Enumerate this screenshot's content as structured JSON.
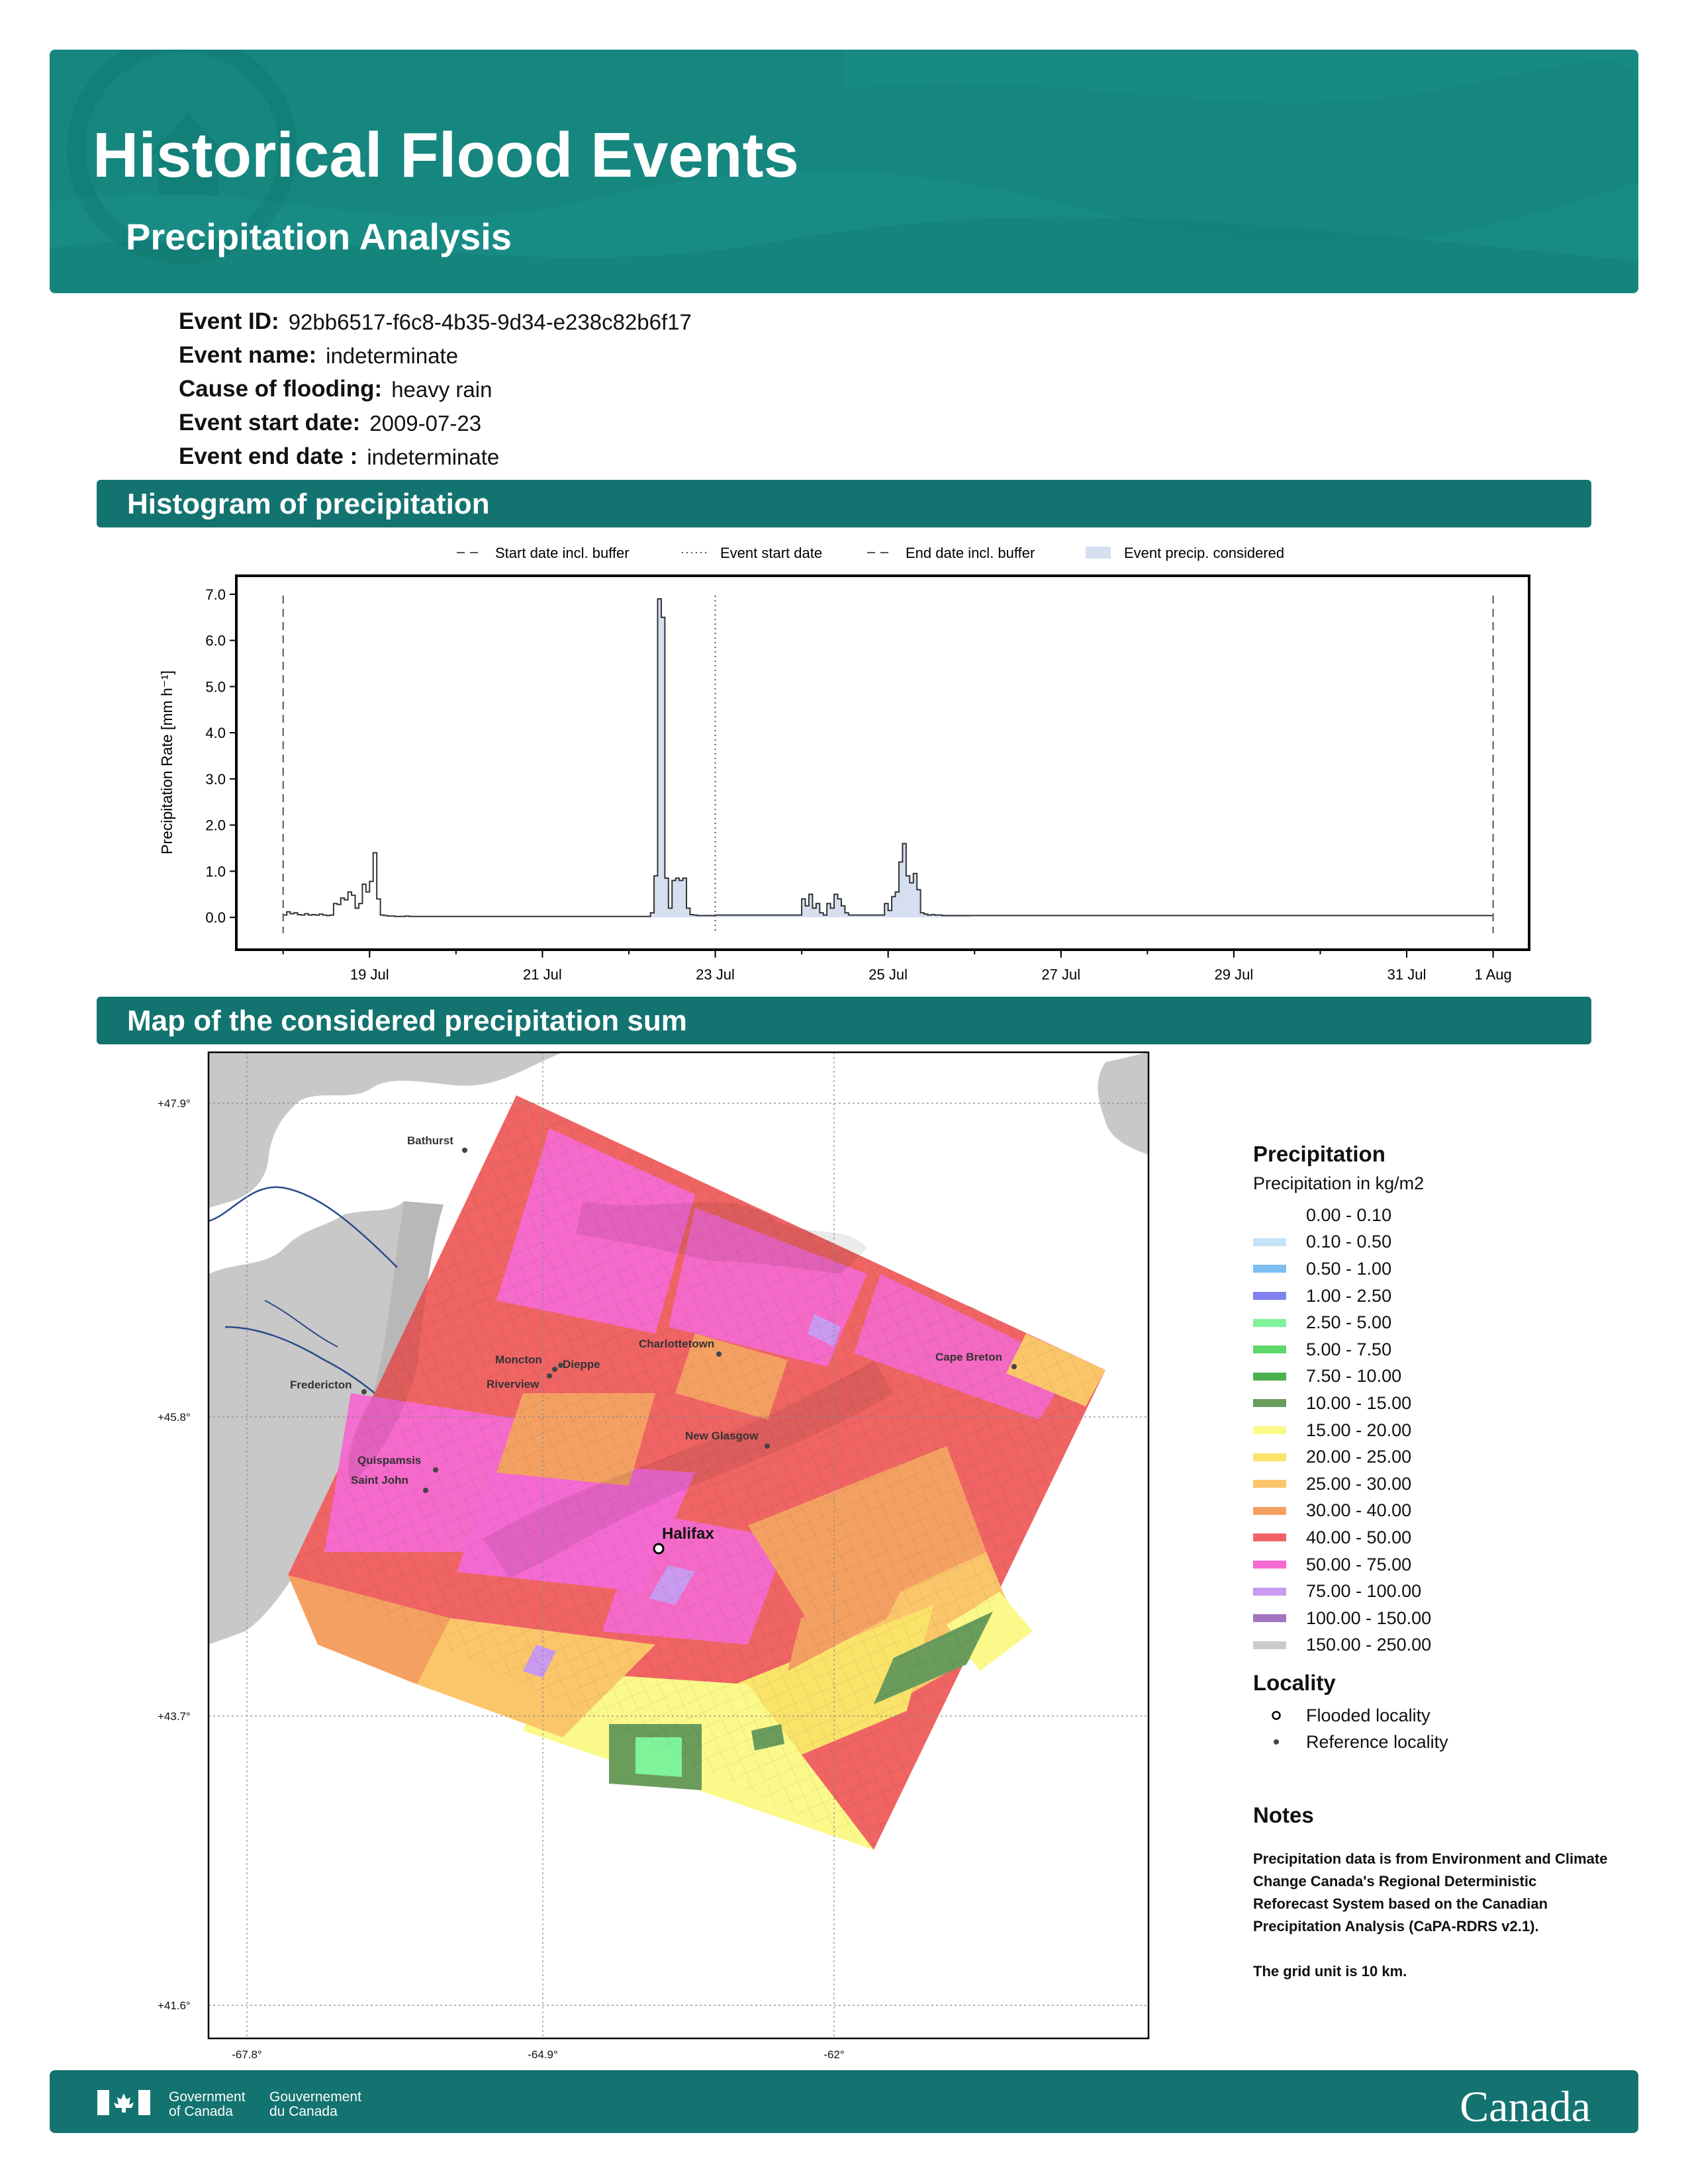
{
  "header": {
    "title": "Historical Flood Events",
    "subtitle": "Precipitation Analysis"
  },
  "event": [
    {
      "key": "Event ID:",
      "value": "92bb6517-f6c8-4b35-9d34-e238c82b6f17"
    },
    {
      "key": "Event name:",
      "value": "indeterminate"
    },
    {
      "key": "Cause of flooding:",
      "value": "heavy rain"
    },
    {
      "key": "Event start date:",
      "value": "2009-07-23"
    },
    {
      "key": "Event end date :",
      "value": "indeterminate"
    }
  ],
  "sections": {
    "histogram": "Histogram of precipitation",
    "map": "Map of the considered precipitation sum"
  },
  "chart_data": {
    "type": "area",
    "ylabel": "Precipitation Rate [mm h⁻¹]",
    "ylim": [
      -0.7,
      7.4
    ],
    "yticks": [
      "0.0",
      "1.0",
      "2.0",
      "3.0",
      "4.0",
      "5.0",
      "6.0",
      "7.0"
    ],
    "xlim": [
      "2009-07-17 11:00",
      "2009-08-01 10:00"
    ],
    "xtick_labels": [
      {
        "date": "2009-07-19",
        "label": "19 Jul"
      },
      {
        "date": "2009-07-21",
        "label": "21 Jul"
      },
      {
        "date": "2009-07-23",
        "label": "23 Jul"
      },
      {
        "date": "2009-07-25",
        "label": "25 Jul"
      },
      {
        "date": "2009-07-27",
        "label": "27 Jul"
      },
      {
        "date": "2009-07-29",
        "label": "29 Jul"
      },
      {
        "date": "2009-07-31",
        "label": "31 Jul"
      },
      {
        "date": "2009-08-01",
        "label": "1 Aug"
      }
    ],
    "legend": [
      {
        "name": "Start date incl. buffer",
        "style": "dashed"
      },
      {
        "name": "Event start date",
        "style": "dotted"
      },
      {
        "name": "End date incl. buffer",
        "style": "dashed"
      },
      {
        "name": "Event precip. considered",
        "style": "fill"
      }
    ],
    "legend_position": "top-center",
    "vlines": [
      {
        "name": "Start date incl. buffer",
        "date": "2009-07-18 00:00"
      },
      {
        "name": "Event start date",
        "date": "2009-07-23 00:00"
      },
      {
        "name": "End date incl. buffer",
        "date": "2009-08-01 00:00"
      }
    ],
    "series": [
      {
        "date": "2009-07-18 00:00",
        "values": [
          0.05,
          0.12,
          0.08,
          0.1,
          0.06,
          0.05,
          0.08,
          0.05,
          0.06,
          0.05,
          0.07,
          0.05,
          0.04,
          0.05,
          0.3,
          0.28,
          0.42,
          0.38,
          0.55,
          0.48,
          0.2,
          0.3,
          0.72,
          0.55,
          0.78,
          1.4,
          0.4,
          0.05,
          0.04,
          0.03,
          0.03,
          0.02,
          0.02,
          0.02,
          0.03,
          0.02,
          0.02,
          0.02,
          0.02,
          0.02,
          0.02,
          0.02,
          0.02,
          0.02,
          0.02,
          0.02,
          0.02,
          0.02
        ]
      },
      {
        "date": "2009-07-20 00:00",
        "values": [
          0.02,
          0.02,
          0.02,
          0.02,
          0.02,
          0.02,
          0.02,
          0.02,
          0.02,
          0.02,
          0.02,
          0.02,
          0.02,
          0.02,
          0.02,
          0.02,
          0.02,
          0.02,
          0.02,
          0.02,
          0.02,
          0.02,
          0.02,
          0.02,
          0.02,
          0.02,
          0.02,
          0.02,
          0.02,
          0.02,
          0.02,
          0.02,
          0.02,
          0.02,
          0.02,
          0.02,
          0.02,
          0.02,
          0.02,
          0.02,
          0.02,
          0.02,
          0.02,
          0.02,
          0.02,
          0.02,
          0.02,
          0.02
        ]
      },
      {
        "date": "2009-07-22 00:00",
        "values": [
          0.02,
          0.02,
          0.02,
          0.02,
          0.02,
          0.02,
          0.1,
          0.9,
          6.9,
          6.5,
          0.85,
          0.2,
          0.8,
          0.85,
          0.8,
          0.85,
          0.2,
          0.06,
          0.05,
          0.04,
          0.04,
          0.04,
          0.04,
          0.04,
          0.05,
          0.05,
          0.05,
          0.05,
          0.05,
          0.05,
          0.05,
          0.05,
          0.05,
          0.05,
          0.05,
          0.05,
          0.05,
          0.05,
          0.05,
          0.05,
          0.05,
          0.05,
          0.05,
          0.05,
          0.05,
          0.05,
          0.05,
          0.05
        ]
      },
      {
        "date": "2009-07-24 00:00",
        "values": [
          0.4,
          0.25,
          0.5,
          0.2,
          0.3,
          0.1,
          0.05,
          0.3,
          0.2,
          0.5,
          0.4,
          0.25,
          0.1,
          0.05,
          0.05,
          0.05,
          0.05,
          0.05,
          0.05,
          0.05,
          0.05,
          0.05,
          0.05,
          0.3,
          0.15,
          0.45,
          0.55,
          1.2,
          1.6,
          0.9,
          0.75,
          0.95,
          0.6,
          0.1,
          0.07,
          0.05,
          0.06,
          0.05,
          0.05,
          0.04,
          0.04,
          0.04,
          0.04,
          0.04,
          0.04,
          0.04,
          0.04,
          0.04
        ]
      },
      {
        "date": "2009-07-26 00:00",
        "values": [
          0.04,
          0.04,
          0.04,
          0.04,
          0.04,
          0.04,
          0.04,
          0.04,
          0.04,
          0.04,
          0.04,
          0.04,
          0.04,
          0.04,
          0.04,
          0.04,
          0.04,
          0.04,
          0.04,
          0.04,
          0.04,
          0.04,
          0.04,
          0.04,
          0.04,
          0.04,
          0.04,
          0.04,
          0.04,
          0.04,
          0.04,
          0.04,
          0.04,
          0.04,
          0.04,
          0.04,
          0.04,
          0.04,
          0.04,
          0.04,
          0.04,
          0.04,
          0.04,
          0.04,
          0.04,
          0.04,
          0.04,
          0.04
        ]
      },
      {
        "date": "2009-07-28 00:00",
        "values": [
          0.04,
          0.04,
          0.04,
          0.04,
          0.04,
          0.04,
          0.04,
          0.04,
          0.04,
          0.04,
          0.04,
          0.04,
          0.04,
          0.04,
          0.04,
          0.04,
          0.04,
          0.04,
          0.04,
          0.04,
          0.04,
          0.04,
          0.04,
          0.04,
          0.04,
          0.04,
          0.04,
          0.04,
          0.04,
          0.04,
          0.04,
          0.04,
          0.04,
          0.04,
          0.04,
          0.04,
          0.04,
          0.04,
          0.04,
          0.04,
          0.04,
          0.04,
          0.04,
          0.04,
          0.04,
          0.04,
          0.04,
          0.04
        ]
      },
      {
        "date": "2009-07-30 00:00",
        "values": [
          0.04,
          0.04,
          0.04,
          0.04,
          0.04,
          0.04,
          0.04,
          0.04,
          0.04,
          0.04,
          0.04,
          0.04,
          0.04,
          0.04,
          0.04,
          0.04,
          0.04,
          0.04,
          0.04,
          0.04,
          0.04,
          0.04,
          0.04,
          0.04,
          0.04,
          0.04,
          0.04,
          0.04,
          0.04,
          0.04,
          0.04,
          0.04,
          0.04,
          0.04,
          0.04,
          0.04,
          0.04,
          0.04,
          0.04,
          0.04,
          0.04,
          0.04,
          0.04,
          0.04,
          0.04,
          0.04,
          0.04,
          0.04
        ]
      }
    ],
    "series_note_unused": ""
  },
  "map": {
    "lat_ticks": [
      "+47.9°",
      "+45.8°",
      "+43.7°",
      "+41.6°"
    ],
    "lon_ticks": [
      "-67.8°",
      "-64.9°",
      "-62°"
    ],
    "places": [
      {
        "name": "Bathurst",
        "type": "reference"
      },
      {
        "name": "Charlottetown",
        "type": "reference"
      },
      {
        "name": "Moncton",
        "type": "reference"
      },
      {
        "name": "Dieppe",
        "type": "reference"
      },
      {
        "name": "Riverview",
        "type": "reference"
      },
      {
        "name": "Fredericton",
        "type": "reference"
      },
      {
        "name": "Cape Breton",
        "type": "reference"
      },
      {
        "name": "New Glasgow",
        "type": "reference"
      },
      {
        "name": "Quispamsis",
        "type": "reference"
      },
      {
        "name": "Saint John",
        "type": "reference"
      },
      {
        "name": "Halifax",
        "type": "flooded"
      }
    ]
  },
  "legend": {
    "precip_title": "Precipitation",
    "precip_unit": "Precipitation in kg/m2",
    "classes": [
      {
        "label": "0.00 - 0.10",
        "color": "#ffffff"
      },
      {
        "label": "0.10 - 0.50",
        "color": "#c6e2f7"
      },
      {
        "label": "0.50 - 1.00",
        "color": "#7ebdf0"
      },
      {
        "label": "1.00 - 2.50",
        "color": "#8080f0"
      },
      {
        "label": "2.50 - 5.00",
        "color": "#7ff39a"
      },
      {
        "label": "5.00 - 7.50",
        "color": "#5fd86a"
      },
      {
        "label": "7.50 - 10.00",
        "color": "#4caf4f"
      },
      {
        "label": "10.00 - 15.00",
        "color": "#6a9c5c"
      },
      {
        "label": "15.00 - 20.00",
        "color": "#fbf98a"
      },
      {
        "label": "20.00 - 25.00",
        "color": "#fbe36a"
      },
      {
        "label": "25.00 - 30.00",
        "color": "#fbc66a"
      },
      {
        "label": "30.00 - 40.00",
        "color": "#f5a063"
      },
      {
        "label": "40.00 - 50.00",
        "color": "#f06464"
      },
      {
        "label": "50.00 - 75.00",
        "color": "#f56ad2"
      },
      {
        "label": "75.00 - 100.00",
        "color": "#c99af0"
      },
      {
        "label": "100.00 - 150.00",
        "color": "#a275c0"
      },
      {
        "label": "150.00 - 250.00",
        "color": "#cccccc"
      }
    ],
    "locality_title": "Locality",
    "flooded": "Flooded locality",
    "reference": "Reference locality",
    "notes_title": "Notes",
    "notes_1": "Precipitation data is from Environment and Climate Change Canada's Regional Deterministic Reforecast System based on the Canadian Precipitation Analysis (CaPA-RDRS v2.1).",
    "notes_2": "The grid unit is 10 km."
  },
  "footer": {
    "gov_en_1": "Government",
    "gov_en_2": "of Canada",
    "gov_fr_1": "Gouvernement",
    "gov_fr_2": "du Canada",
    "wordmark": "Canada"
  },
  "colors": {
    "banner": "#15877f",
    "section_bar": "#137370",
    "event_fill": "#d5dff0",
    "land": "#c8c8c8"
  }
}
